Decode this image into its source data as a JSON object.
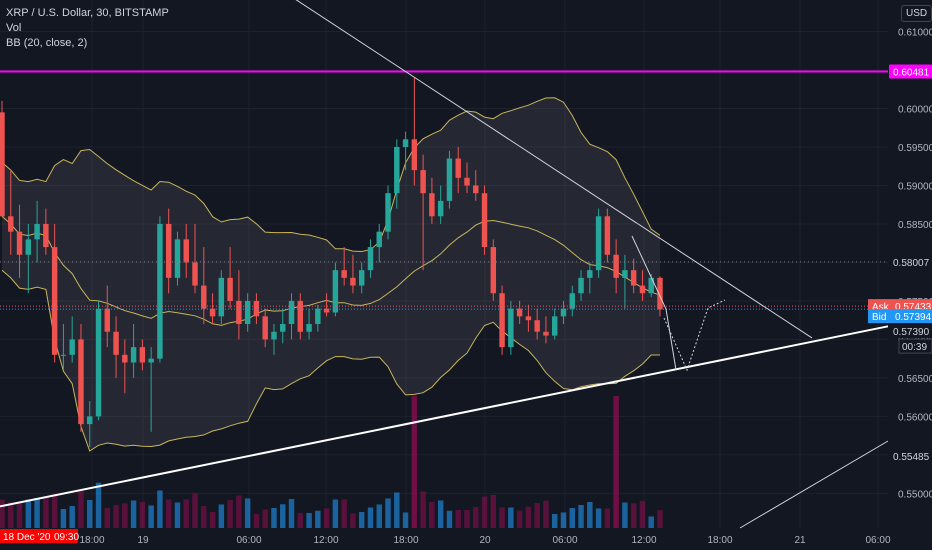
{
  "header": {
    "symbol_line": "XRP / U.S. Dollar, 30, BITSTAMP",
    "volume_label": "Vol",
    "bb_label": "BB (20, close, 2)",
    "currency_badge": "USD"
  },
  "colors": {
    "background": "#131722",
    "up": "#26a69a",
    "down": "#ef5350",
    "bb_band": "#c9b55a",
    "resistance_line": "#ff00ff",
    "trendline": "#ffffff",
    "ask": "#ef5350",
    "bid": "#2196f3",
    "date_badge": "#ff0000"
  },
  "chart_data": {
    "type": "candlestick",
    "title": "XRP / U.S. Dollar, 30, BITSTAMP",
    "ylim": [
      0.5455,
      0.6141
    ],
    "y_ticks": [
      "0.61000",
      "0.60500",
      "0.60000",
      "0.59500",
      "0.59000",
      "0.58500",
      "0.58000",
      "0.57500",
      "0.57000",
      "0.56500",
      "0.56000",
      "0.55500",
      "0.55000"
    ],
    "x_ticks": [
      "18:00",
      "19",
      "06:00",
      "12:00",
      "18:00",
      "20",
      "06:00",
      "12:00",
      "18:00",
      "21",
      "06:00"
    ],
    "price_labels": {
      "horizontal_level": "0.60481",
      "level_2": "0.58007",
      "ask_label": "Ask",
      "ask": "0.57433",
      "bid_label": "Bid",
      "bid": "0.57394",
      "last": "0.57390",
      "countdown": "00:39",
      "support": "0.55485"
    },
    "bottom_badges": [
      "18 Dec '20",
      "09:30"
    ],
    "candles": [
      [
        0.5995,
        0.601,
        0.586,
        0.586
      ],
      [
        0.586,
        0.592,
        0.581,
        0.584
      ],
      [
        0.584,
        0.5875,
        0.578,
        0.581
      ],
      [
        0.581,
        0.585,
        0.576,
        0.583
      ],
      [
        0.583,
        0.588,
        0.58,
        0.585
      ],
      [
        0.585,
        0.587,
        0.581,
        0.582
      ],
      [
        0.582,
        0.585,
        0.567,
        0.568
      ],
      [
        0.568,
        0.572,
        0.566,
        0.568
      ],
      [
        0.568,
        0.573,
        0.567,
        0.57
      ],
      [
        0.57,
        0.572,
        0.558,
        0.559
      ],
      [
        0.559,
        0.562,
        0.556,
        0.56
      ],
      [
        0.56,
        0.575,
        0.5595,
        0.574
      ],
      [
        0.574,
        0.577,
        0.569,
        0.571
      ],
      [
        0.571,
        0.573,
        0.565,
        0.568
      ],
      [
        0.568,
        0.57,
        0.563,
        0.567
      ],
      [
        0.567,
        0.572,
        0.565,
        0.569
      ],
      [
        0.569,
        0.57,
        0.566,
        0.567
      ],
      [
        0.567,
        0.569,
        0.558,
        0.5675
      ],
      [
        0.5675,
        0.586,
        0.567,
        0.585
      ],
      [
        0.585,
        0.587,
        0.576,
        0.578
      ],
      [
        0.578,
        0.584,
        0.577,
        0.583
      ],
      [
        0.583,
        0.585,
        0.578,
        0.58
      ],
      [
        0.58,
        0.585,
        0.576,
        0.577
      ],
      [
        0.577,
        0.582,
        0.572,
        0.574
      ],
      [
        0.574,
        0.576,
        0.572,
        0.573
      ],
      [
        0.573,
        0.579,
        0.572,
        0.578
      ],
      [
        0.578,
        0.582,
        0.574,
        0.575
      ],
      [
        0.575,
        0.579,
        0.57,
        0.572
      ],
      [
        0.572,
        0.576,
        0.571,
        0.575
      ],
      [
        0.575,
        0.576,
        0.572,
        0.573
      ],
      [
        0.573,
        0.574,
        0.569,
        0.57
      ],
      [
        0.57,
        0.572,
        0.568,
        0.571
      ],
      [
        0.571,
        0.574,
        0.5695,
        0.572
      ],
      [
        0.572,
        0.576,
        0.57,
        0.575
      ],
      [
        0.575,
        0.576,
        0.57,
        0.571
      ],
      [
        0.571,
        0.574,
        0.57,
        0.572
      ],
      [
        0.572,
        0.5745,
        0.571,
        0.574
      ],
      [
        0.574,
        0.576,
        0.573,
        0.5735
      ],
      [
        0.5735,
        0.58,
        0.573,
        0.579
      ],
      [
        0.579,
        0.582,
        0.577,
        0.578
      ],
      [
        0.578,
        0.581,
        0.576,
        0.577
      ],
      [
        0.577,
        0.58,
        0.576,
        0.579
      ],
      [
        0.579,
        0.583,
        0.578,
        0.582
      ],
      [
        0.582,
        0.585,
        0.58,
        0.584
      ],
      [
        0.584,
        0.59,
        0.583,
        0.589
      ],
      [
        0.589,
        0.596,
        0.587,
        0.595
      ],
      [
        0.595,
        0.597,
        0.592,
        0.596
      ],
      [
        0.596,
        0.604,
        0.59,
        0.592
      ],
      [
        0.592,
        0.594,
        0.579,
        0.589
      ],
      [
        0.589,
        0.591,
        0.585,
        0.586
      ],
      [
        0.586,
        0.59,
        0.585,
        0.588
      ],
      [
        0.588,
        0.5945,
        0.587,
        0.5935
      ],
      [
        0.5935,
        0.595,
        0.589,
        0.591
      ],
      [
        0.591,
        0.593,
        0.589,
        0.59
      ],
      [
        0.59,
        0.592,
        0.588,
        0.589
      ],
      [
        0.589,
        0.59,
        0.581,
        0.582
      ],
      [
        0.582,
        0.583,
        0.575,
        0.576
      ],
      [
        0.576,
        0.577,
        0.568,
        0.569
      ],
      [
        0.569,
        0.575,
        0.568,
        0.574
      ],
      [
        0.574,
        0.575,
        0.572,
        0.573
      ],
      [
        0.573,
        0.5745,
        0.571,
        0.5725
      ],
      [
        0.5725,
        0.574,
        0.57,
        0.571
      ],
      [
        0.571,
        0.573,
        0.5695,
        0.5705
      ],
      [
        0.5705,
        0.574,
        0.57,
        0.573
      ],
      [
        0.573,
        0.575,
        0.572,
        0.574
      ],
      [
        0.574,
        0.577,
        0.573,
        0.576
      ],
      [
        0.576,
        0.579,
        0.575,
        0.578
      ],
      [
        0.578,
        0.58,
        0.576,
        0.579
      ],
      [
        0.579,
        0.587,
        0.578,
        0.586
      ],
      [
        0.586,
        0.587,
        0.58,
        0.581
      ],
      [
        0.581,
        0.583,
        0.576,
        0.578
      ],
      [
        0.578,
        0.581,
        0.574,
        0.579
      ],
      [
        0.579,
        0.5805,
        0.576,
        0.577
      ],
      [
        0.577,
        0.579,
        0.575,
        0.576
      ],
      [
        0.576,
        0.5785,
        0.5755,
        0.578
      ],
      [
        0.578,
        0.5782,
        0.573,
        0.5739
      ]
    ],
    "volume_spikes": [
      {
        "index": 47,
        "color": "down"
      },
      {
        "index": 70,
        "color": "down"
      }
    ],
    "bollinger": {
      "period": 20,
      "source": "close",
      "stddev": 2
    },
    "horizontal_level": 0.60481,
    "dotted_level": 0.58007,
    "support_line": {
      "from": 0.5483,
      "to": 0.5743
    },
    "resistance_trend": {
      "from": 0.6155,
      "to": 0.5698
    }
  }
}
